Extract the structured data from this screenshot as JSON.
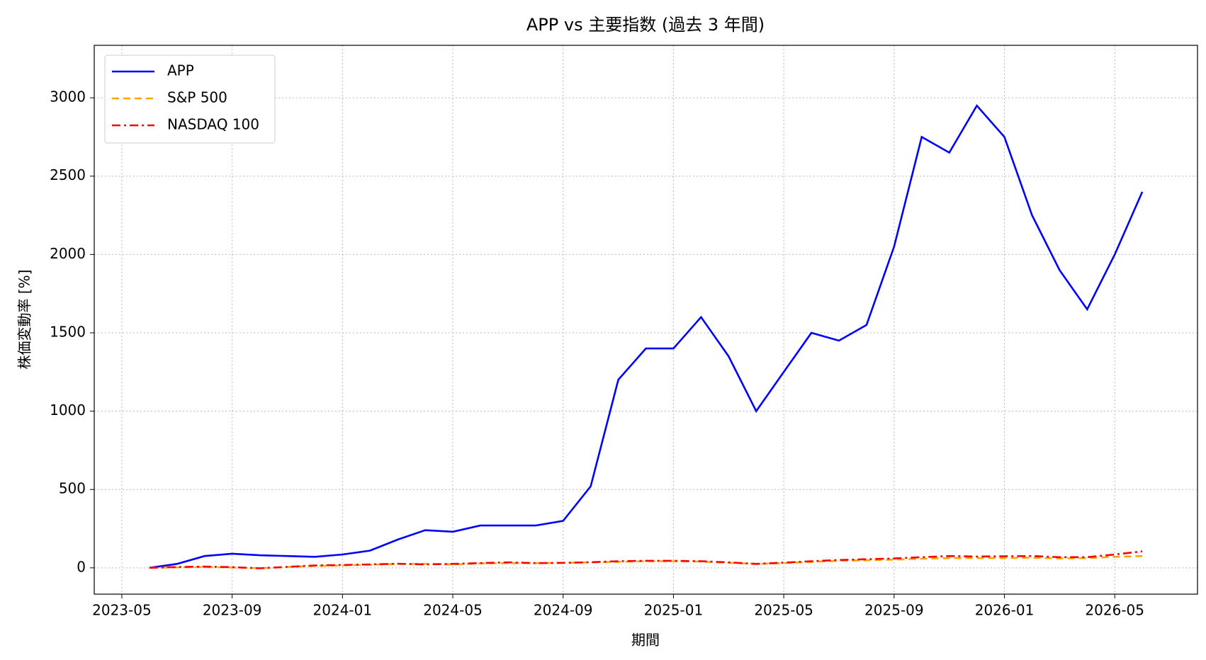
{
  "chart_data": {
    "type": "line",
    "title": "APP vs 主要指数 (過去 3 年間)",
    "xlabel": "期間",
    "ylabel": "株価変動率 [%]",
    "x": [
      "2023-06",
      "2023-07",
      "2023-08",
      "2023-09",
      "2023-10",
      "2023-11",
      "2023-12",
      "2024-01",
      "2024-02",
      "2024-03",
      "2024-04",
      "2024-05",
      "2024-06",
      "2024-07",
      "2024-08",
      "2024-09",
      "2024-10",
      "2024-11",
      "2024-12",
      "2025-01",
      "2025-02",
      "2025-03",
      "2025-04",
      "2025-05",
      "2025-06",
      "2025-07",
      "2025-08",
      "2025-09",
      "2025-10",
      "2025-11",
      "2025-12",
      "2026-01",
      "2026-02",
      "2026-03",
      "2026-04",
      "2026-05",
      "2026-06"
    ],
    "series": [
      {
        "name": "APP",
        "color": "#0000ff",
        "linestyle": "solid",
        "values": [
          0,
          25,
          75,
          90,
          80,
          75,
          70,
          85,
          110,
          180,
          240,
          230,
          270,
          270,
          270,
          300,
          520,
          1200,
          1400,
          1400,
          1600,
          1350,
          1000,
          1250,
          1500,
          1450,
          1550,
          2050,
          2750,
          2650,
          2950,
          2750,
          2250,
          1900,
          1650,
          2000,
          2400
        ]
      },
      {
        "name": "S&P 500",
        "color": "#ffa500",
        "linestyle": "dashed",
        "values": [
          0,
          3,
          5,
          2,
          -2,
          5,
          12,
          15,
          20,
          25,
          25,
          22,
          28,
          30,
          30,
          32,
          35,
          38,
          42,
          42,
          40,
          32,
          25,
          30,
          38,
          45,
          48,
          52,
          58,
          62,
          62,
          62,
          65,
          60,
          62,
          70,
          75
        ]
      },
      {
        "name": "NASDAQ 100",
        "color": "#ff0000",
        "linestyle": "dashdot",
        "values": [
          0,
          5,
          8,
          4,
          -3,
          6,
          15,
          18,
          22,
          26,
          22,
          25,
          30,
          35,
          30,
          32,
          36,
          42,
          45,
          45,
          42,
          35,
          25,
          33,
          42,
          50,
          55,
          60,
          68,
          75,
          72,
          74,
          75,
          68,
          68,
          85,
          105
        ]
      }
    ],
    "xlim": [
      "2023-04",
      "2026-08"
    ],
    "xticks": [
      "2023-05",
      "2023-09",
      "2024-01",
      "2024-05",
      "2024-09",
      "2025-01",
      "2025-05",
      "2025-09",
      "2026-01",
      "2026-05"
    ],
    "ylim": [
      -168,
      3335
    ],
    "yticks": [
      0,
      500,
      1000,
      1500,
      2000,
      2500,
      3000
    ],
    "grid": true,
    "legend": "upper-left"
  }
}
